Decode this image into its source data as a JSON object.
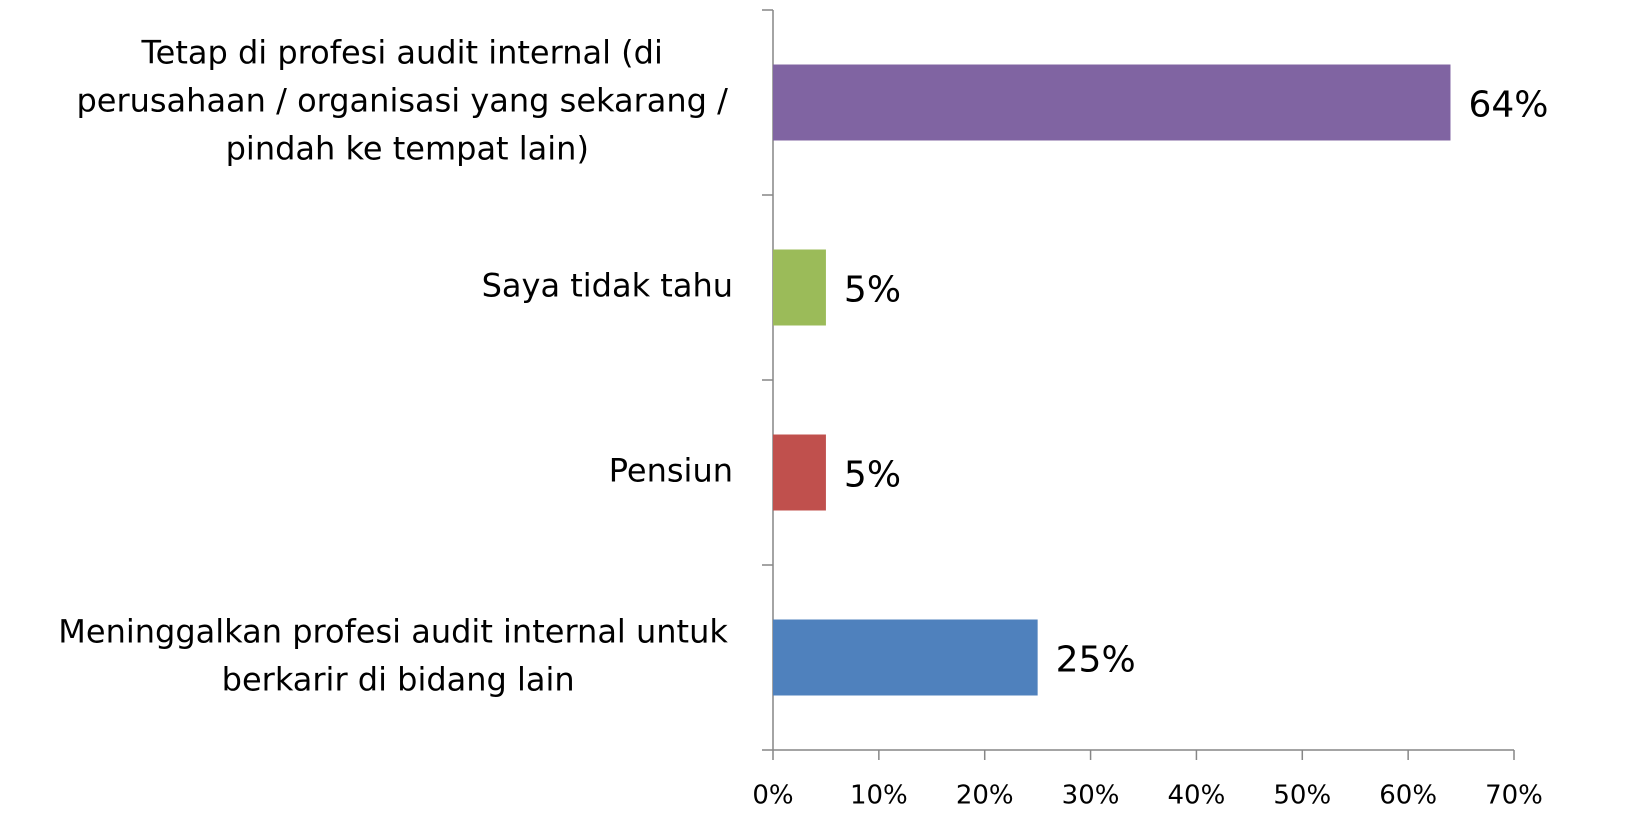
{
  "chart_data": {
    "type": "hbar",
    "categories": [
      "Tetap di profesi audit internal (di perusahaan / organisasi yang sekarang / pindah ke tempat lain)",
      "Saya tidak tahu",
      "Pensiun",
      "Meninggalkan profesi audit internal untuk berkarir di bidang lain"
    ],
    "values": [
      64,
      5,
      5,
      25
    ],
    "value_labels": [
      "64%",
      "5%",
      "5%",
      "25%"
    ],
    "colors": [
      "#8064a2",
      "#9bbb59",
      "#c0504d",
      "#4f81bd"
    ],
    "xlim": [
      0,
      70
    ],
    "xticks": [
      {
        "value": 0,
        "label": "0%"
      },
      {
        "value": 10,
        "label": "10%"
      },
      {
        "value": 20,
        "label": "20%"
      },
      {
        "value": 30,
        "label": "30%"
      },
      {
        "value": 40,
        "label": "40%"
      },
      {
        "value": 50,
        "label": "50%"
      },
      {
        "value": 60,
        "label": "60%"
      },
      {
        "value": 70,
        "label": "70%"
      }
    ]
  }
}
